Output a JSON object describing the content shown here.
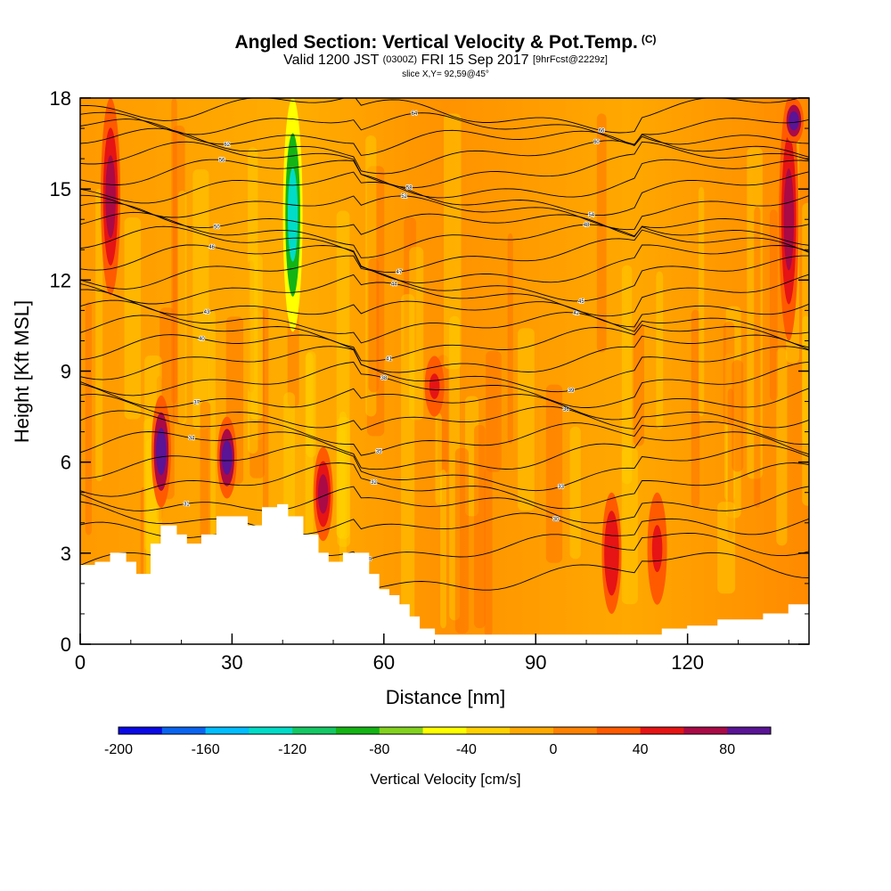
{
  "header": {
    "title": "Angled Section: Vertical Velocity & Pot.Temp.",
    "title_unit": "(C)",
    "valid_prefix": "Valid 1200 JST",
    "valid_utc": "(0300Z)",
    "valid_date": "FRI 15 Sep 2017",
    "forecast_info": "[9hrFcst@2229z]",
    "slice_info": "slice X,Y= 92,59@45°"
  },
  "chart_data": {
    "type": "heatmap",
    "xlabel": "Distance [nm]",
    "ylabel": "Height [Kft MSL]",
    "xlim": [
      0,
      144
    ],
    "ylim": [
      0,
      18
    ],
    "x_ticks": [
      0,
      30,
      60,
      90,
      120
    ],
    "y_ticks": [
      0,
      3,
      6,
      9,
      12,
      15,
      18
    ],
    "x_minor_step": 10,
    "y_minor_step": 1,
    "grid": false,
    "background_level": "0 to 20 cm/s (orange)",
    "terrain_profile": [
      [
        0,
        2.6
      ],
      [
        3,
        2.7
      ],
      [
        6,
        3.0
      ],
      [
        9,
        2.7
      ],
      [
        11,
        2.3
      ],
      [
        14,
        3.3
      ],
      [
        16,
        3.9
      ],
      [
        19,
        3.6
      ],
      [
        21,
        3.3
      ],
      [
        24,
        3.6
      ],
      [
        27,
        4.2
      ],
      [
        31,
        4.2
      ],
      [
        33,
        3.9
      ],
      [
        36,
        4.5
      ],
      [
        39,
        4.6
      ],
      [
        41,
        4.2
      ],
      [
        44,
        3.6
      ],
      [
        47,
        3.0
      ],
      [
        49,
        2.7
      ],
      [
        52,
        3.0
      ],
      [
        55,
        3.0
      ],
      [
        57,
        2.3
      ],
      [
        59,
        1.8
      ],
      [
        61,
        1.6
      ],
      [
        63,
        1.3
      ],
      [
        65,
        0.9
      ],
      [
        67,
        0.5
      ],
      [
        70,
        0.3
      ],
      [
        80,
        0.3
      ],
      [
        100,
        0.3
      ],
      [
        113,
        0.3
      ],
      [
        115,
        0.5
      ],
      [
        120,
        0.6
      ],
      [
        126,
        0.8
      ],
      [
        135,
        1.0
      ],
      [
        140,
        1.3
      ],
      [
        144,
        1.3
      ]
    ],
    "velocity_features": [
      {
        "x": 6,
        "bottom": 11.5,
        "top": 18,
        "value": 70
      },
      {
        "x": 16,
        "bottom": 4.5,
        "top": 8.2,
        "value": 80
      },
      {
        "x": 29,
        "bottom": 4.8,
        "top": 7.5,
        "value": 85
      },
      {
        "x": 42,
        "bottom": 10.3,
        "top": 18,
        "value": -130
      },
      {
        "x": 48,
        "bottom": 3.4,
        "top": 6.5,
        "value": 75
      },
      {
        "x": 70,
        "bottom": 7.5,
        "top": 9.5,
        "value": 45
      },
      {
        "x": 105,
        "bottom": 1.0,
        "top": 5.0,
        "value": 55
      },
      {
        "x": 114,
        "bottom": 1.3,
        "top": 5.0,
        "value": 50
      },
      {
        "x": 140,
        "bottom": 10.0,
        "top": 18,
        "value": 60
      },
      {
        "x": 141,
        "bottom": 16.5,
        "top": 18,
        "value": 85
      }
    ],
    "isotherm_levels": [
      "28",
      "29",
      "30",
      "31",
      "32",
      "33",
      "34",
      "35",
      "36",
      "37",
      "38",
      "39",
      "40",
      "41",
      "42",
      "43",
      "44",
      "45",
      "46",
      "47",
      "48",
      "50",
      "52",
      "54",
      "56",
      "58",
      "60",
      "62",
      "64",
      "66"
    ],
    "colorbar": {
      "title": "Vertical Velocity [cm/s]",
      "min": -200,
      "max": 100,
      "step": 20,
      "tick_labels": [
        "-200",
        "-160",
        "-120",
        "-80",
        "-40",
        "0",
        "40",
        "80"
      ],
      "colors": [
        "#0a0ae6",
        "#0a64f0",
        "#00beff",
        "#00dcc8",
        "#14c864",
        "#14b414",
        "#82d21e",
        "#ffff00",
        "#ffd200",
        "#ffaa00",
        "#ff8200",
        "#ff5a00",
        "#e61414",
        "#aa0a46",
        "#5a1496"
      ]
    }
  }
}
